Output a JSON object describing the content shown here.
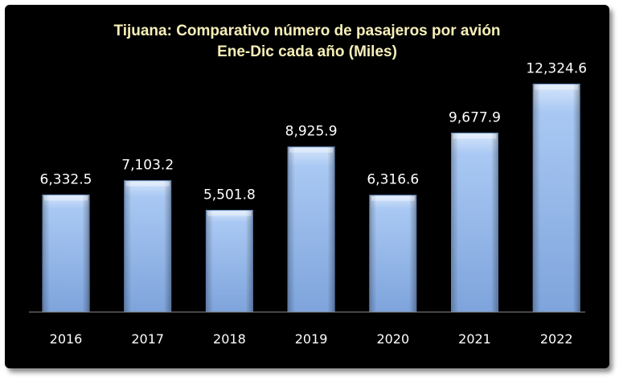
{
  "chart_data": {
    "type": "bar",
    "title": "Tijuana: Comparativo número de pasajeros por avión",
    "subtitle": "Ene-Dic cada año (Miles)",
    "categories": [
      "2016",
      "2017",
      "2018",
      "2019",
      "2020",
      "2021",
      "2022"
    ],
    "values": [
      6332.5,
      7103.2,
      5501.8,
      8925.9,
      6316.6,
      9677.9,
      12324.6
    ],
    "value_labels": [
      "6,332.5",
      "7,103.2",
      "5,501.8",
      "8,925.9",
      "6,316.6",
      "9,677.9",
      "12,324.6"
    ],
    "xlabel": "",
    "ylabel": "",
    "ylim": [
      0,
      14000
    ],
    "grid": false,
    "legend": "none",
    "colors": {
      "background": "#000000",
      "bar_top": "#d6e6fb",
      "bar_mid": "#a9c8f3",
      "bar_bottom": "#7ea4dc",
      "title_text": "#f6efb8",
      "label_text": "#ffffff"
    }
  }
}
